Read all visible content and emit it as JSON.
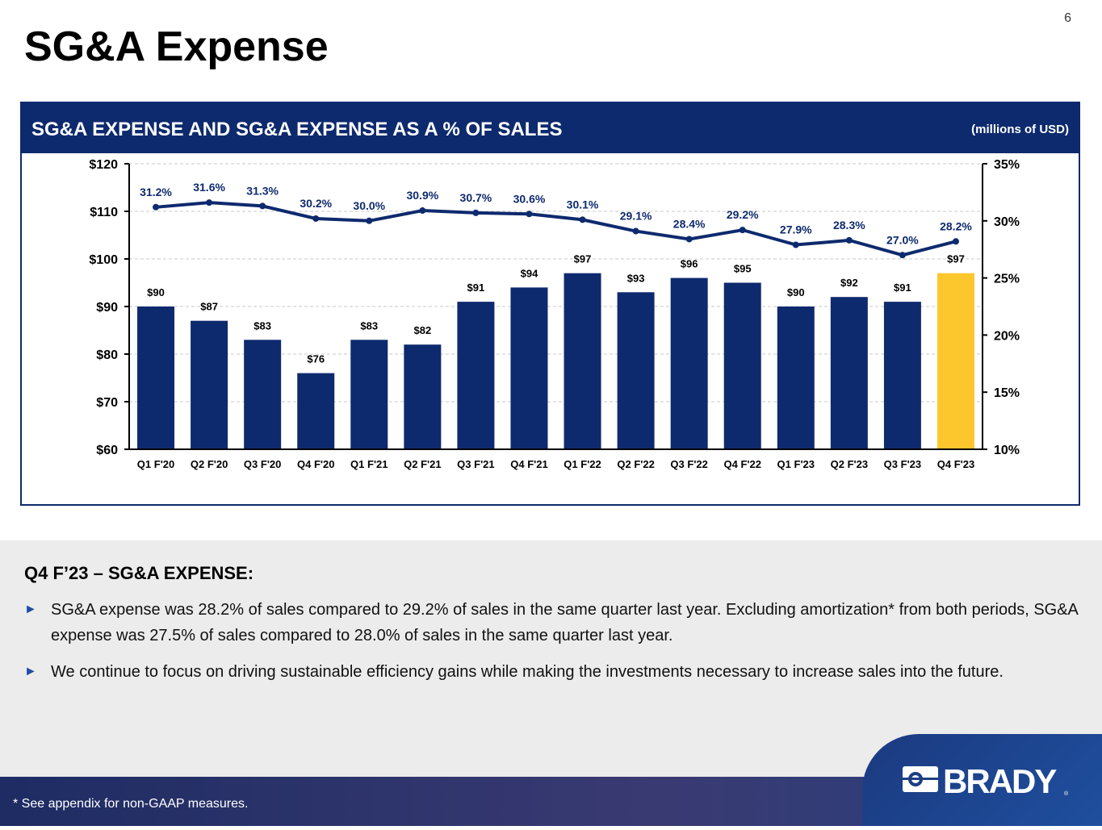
{
  "title": "SG&A Expense",
  "page_number": "6",
  "panel": {
    "heading": "SG&A EXPENSE AND SG&A EXPENSE AS A % OF SALES",
    "units": "(millions of USD)"
  },
  "chart_data": {
    "type": "bar+line",
    "categories": [
      "Q1 F'20",
      "Q2 F'20",
      "Q3 F'20",
      "Q4 F'20",
      "Q1 F'21",
      "Q2 F'21",
      "Q3 F'21",
      "Q4 F'21",
      "Q1 F'22",
      "Q2 F'22",
      "Q3 F'22",
      "Q4 F'22",
      "Q1 F'23",
      "Q2 F'23",
      "Q3 F'23",
      "Q4 F'23"
    ],
    "bars": {
      "values": [
        90,
        87,
        83,
        76,
        83,
        82,
        91,
        94,
        97,
        93,
        96,
        95,
        90,
        92,
        91,
        97
      ],
      "labels": [
        "$90",
        "$87",
        "$83",
        "$76",
        "$83",
        "$82",
        "$91",
        "$94",
        "$97",
        "$93",
        "$96",
        "$95",
        "$90",
        "$92",
        "$91",
        "$97"
      ],
      "color": "#0e2a6e",
      "highlight_color": "#fcc62d",
      "highlight_index": 15
    },
    "line": {
      "values": [
        31.2,
        31.6,
        31.3,
        30.2,
        30.0,
        30.9,
        30.7,
        30.6,
        30.1,
        29.1,
        28.4,
        29.2,
        27.9,
        28.3,
        27.0,
        28.2
      ],
      "labels": [
        "31.2%",
        "31.6%",
        "31.3%",
        "30.2%",
        "30.0%",
        "30.9%",
        "30.7%",
        "30.6%",
        "30.1%",
        "29.1%",
        "28.4%",
        "29.2%",
        "27.9%",
        "28.3%",
        "27.0%",
        "28.2%"
      ],
      "color": "#0e2a6e"
    },
    "y_left": {
      "range": [
        60,
        120
      ],
      "ticks": [
        "$60",
        "$70",
        "$80",
        "$90",
        "$100",
        "$110",
        "$120"
      ]
    },
    "y_right": {
      "range": [
        10,
        35
      ],
      "ticks": [
        "10%",
        "15%",
        "20%",
        "25%",
        "30%",
        "35%"
      ]
    },
    "grid": "dashed horizontal"
  },
  "lower": {
    "subtitle": "Q4 F’23 – SG&A EXPENSE:",
    "bullets": [
      "SG&A expense was 28.2% of sales compared to 29.2% of sales in the same quarter last year.  Excluding amortization* from both periods, SG&A expense was 27.5% of sales compared to 28.0% of sales in the same quarter last year.",
      "We continue to focus on driving sustainable efficiency gains while making the investments necessary to increase sales into the future."
    ],
    "bullet_icon": "triangle-right-icon"
  },
  "footer": {
    "note": "*   See appendix for non-GAAP measures.",
    "logo": "BRADY"
  }
}
